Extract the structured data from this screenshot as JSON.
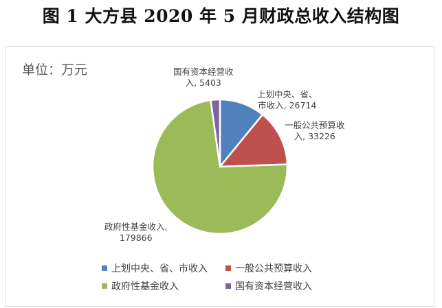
{
  "title": "图 1  大方县 2020 年 5 月财政总收入结构图",
  "unit_label": "单位：万元",
  "chart_data": {
    "type": "pie",
    "title": "图 1 大方县2020年5月财政总收入结构图",
    "unit": "万元",
    "categories": [
      "上划中央、省、市收入",
      "一般公共预算收入",
      "政府性基金收入",
      "国有资本经营收入"
    ],
    "values": [
      26714,
      33226,
      179866,
      5403
    ],
    "colors": [
      "#4f81bd",
      "#c0504d",
      "#9bbb59",
      "#8064a2"
    ],
    "start_angle": "12 o'clock, clockwise",
    "legend_position": "bottom",
    "data_labels": true
  },
  "labels": {
    "blue_line1": "上划中央、省、",
    "blue_line2": "市收入, 26714",
    "red_line1": "一般公共预算收",
    "red_line2": "入, 33226",
    "green_line1": "政府性基金收入,",
    "green_line2": "179866",
    "purple_line1": "国有资本经营收",
    "purple_line2": "入, 5403"
  },
  "legend": [
    {
      "label": "上划中央、省、市收入",
      "color": "#4f81bd"
    },
    {
      "label": "一般公共预算收入",
      "color": "#c0504d"
    },
    {
      "label": "政府性基金收入",
      "color": "#9bbb59"
    },
    {
      "label": "国有资本经营收入",
      "color": "#8064a2"
    }
  ]
}
